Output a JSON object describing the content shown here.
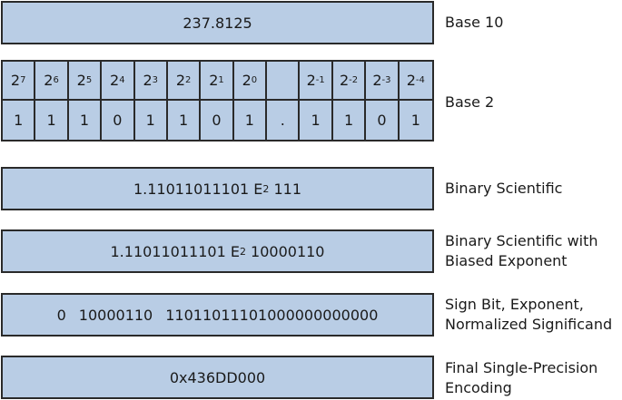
{
  "base10": {
    "value": "237.8125",
    "label": [
      "Base 10"
    ]
  },
  "base2": {
    "powers": [
      {
        "base": "2",
        "exp": "7"
      },
      {
        "base": "2",
        "exp": "6"
      },
      {
        "base": "2",
        "exp": "5"
      },
      {
        "base": "2",
        "exp": "4"
      },
      {
        "base": "2",
        "exp": "3"
      },
      {
        "base": "2",
        "exp": "2"
      },
      {
        "base": "2",
        "exp": "1"
      },
      {
        "base": "2",
        "exp": "0"
      },
      null,
      {
        "base": "2",
        "exp": "-1"
      },
      {
        "base": "2",
        "exp": "-2"
      },
      {
        "base": "2",
        "exp": "-3"
      },
      {
        "base": "2",
        "exp": "-4"
      }
    ],
    "digits": [
      "1",
      "1",
      "1",
      "0",
      "1",
      "1",
      "0",
      "1",
      ".",
      "1",
      "1",
      "0",
      "1"
    ],
    "label": [
      "Base 2"
    ]
  },
  "scientific": {
    "mantissa": "1.11011011101",
    "e": "E",
    "sub": "2",
    "exponent": "111",
    "label": [
      "Binary Scientific"
    ]
  },
  "biased": {
    "mantissa": "1.11011011101",
    "e": "E",
    "sub": "2",
    "exponent": "10000110",
    "label": [
      "Binary Scientific with",
      "Biased Exponent"
    ]
  },
  "fields": {
    "sign": "0",
    "exponent": "10000110",
    "significand": "11011011101000000000000",
    "label": [
      "Sign Bit, Exponent,",
      "Normalized Significand"
    ]
  },
  "encoding": {
    "value": "0x436DD000",
    "label": [
      "Final Single-Precision",
      "Encoding"
    ]
  }
}
